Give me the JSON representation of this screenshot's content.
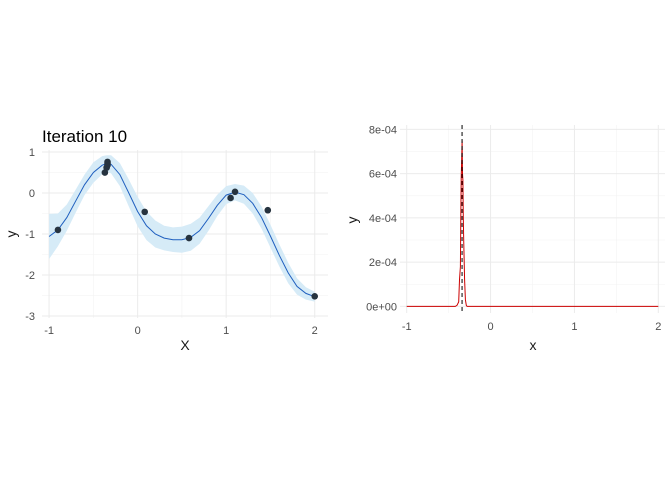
{
  "chart_data": [
    {
      "type": "scatter",
      "title": "Iteration 10",
      "xlabel": "X",
      "ylabel": "y",
      "xlim": [
        -1.08,
        2.15
      ],
      "ylim": [
        -3.05,
        1.05
      ],
      "grid": true,
      "xticks": [
        -1,
        0,
        1,
        2
      ],
      "yticks": [
        -3,
        -2,
        -1,
        0,
        1
      ],
      "colors": {
        "band": "#d6ebf7",
        "line": "#1f5fbf",
        "point": "#26333f",
        "grid": "#ebebeb"
      },
      "fit_line": {
        "x": [
          -1.0,
          -0.9,
          -0.8,
          -0.7,
          -0.6,
          -0.5,
          -0.4,
          -0.35,
          -0.3,
          -0.2,
          -0.1,
          0.0,
          0.1,
          0.2,
          0.3,
          0.4,
          0.5,
          0.6,
          0.7,
          0.8,
          0.9,
          1.0,
          1.1,
          1.2,
          1.3,
          1.4,
          1.5,
          1.6,
          1.7,
          1.8,
          1.9,
          2.0
        ],
        "y": [
          -1.06,
          -0.9,
          -0.6,
          -0.2,
          0.2,
          0.5,
          0.68,
          0.72,
          0.7,
          0.45,
          0.0,
          -0.45,
          -0.8,
          -1.0,
          -1.1,
          -1.14,
          -1.14,
          -1.08,
          -0.92,
          -0.62,
          -0.3,
          -0.05,
          0.02,
          -0.04,
          -0.25,
          -0.6,
          -1.05,
          -1.52,
          -1.95,
          -2.28,
          -2.45,
          -2.53
        ]
      },
      "band_half_width": [
        0.55,
        0.4,
        0.32,
        0.28,
        0.25,
        0.25,
        0.22,
        0.2,
        0.22,
        0.28,
        0.33,
        0.36,
        0.35,
        0.33,
        0.3,
        0.3,
        0.32,
        0.33,
        0.32,
        0.3,
        0.26,
        0.22,
        0.2,
        0.22,
        0.25,
        0.27,
        0.28,
        0.27,
        0.25,
        0.2,
        0.15,
        0.12
      ],
      "points": [
        {
          "x": -0.9,
          "y": -0.9
        },
        {
          "x": -0.37,
          "y": 0.5
        },
        {
          "x": -0.35,
          "y": 0.62
        },
        {
          "x": -0.34,
          "y": 0.68
        },
        {
          "x": -0.34,
          "y": 0.72
        },
        {
          "x": -0.34,
          "y": 0.76
        },
        {
          "x": 0.08,
          "y": -0.46
        },
        {
          "x": 0.58,
          "y": -1.1
        },
        {
          "x": 1.05,
          "y": -0.12
        },
        {
          "x": 1.1,
          "y": 0.03
        },
        {
          "x": 1.47,
          "y": -0.42
        },
        {
          "x": 2.0,
          "y": -2.52
        }
      ]
    },
    {
      "type": "line",
      "title": "",
      "xlabel": "x",
      "ylabel": "y",
      "xlim": [
        -1.08,
        2.08
      ],
      "ylim": [
        -3e-05,
        0.00082
      ],
      "grid": true,
      "xticks": [
        -1,
        0,
        1,
        2
      ],
      "yticks": [
        0,
        0.0002,
        0.0004,
        0.0006,
        0.0008
      ],
      "ytick_labels": [
        "0e+00",
        "2e-04",
        "4e-04",
        "6e-04",
        "8e-04"
      ],
      "vline_x": -0.34,
      "colors": {
        "line": "#cc0000",
        "vline": "#000000",
        "grid": "#ebebeb"
      },
      "series": [
        {
          "x": [
            -1.0,
            -0.42,
            -0.4,
            -0.38,
            -0.37,
            -0.36,
            -0.355,
            -0.35,
            -0.345,
            -0.34,
            -0.335,
            -0.33,
            -0.325,
            -0.32,
            -0.31,
            -0.3,
            -0.29,
            -0.28,
            -0.26,
            2.0
          ],
          "y": [
            0,
            0,
            5e-06,
            2e-05,
            0.00012,
            0.00018,
            0.0004,
            0.00058,
            0.00065,
            0.00075,
            0.0006,
            0.00057,
            0.0004,
            0.0003,
            0.00012,
            3e-05,
            5e-06,
            0,
            0,
            0
          ]
        }
      ]
    }
  ]
}
